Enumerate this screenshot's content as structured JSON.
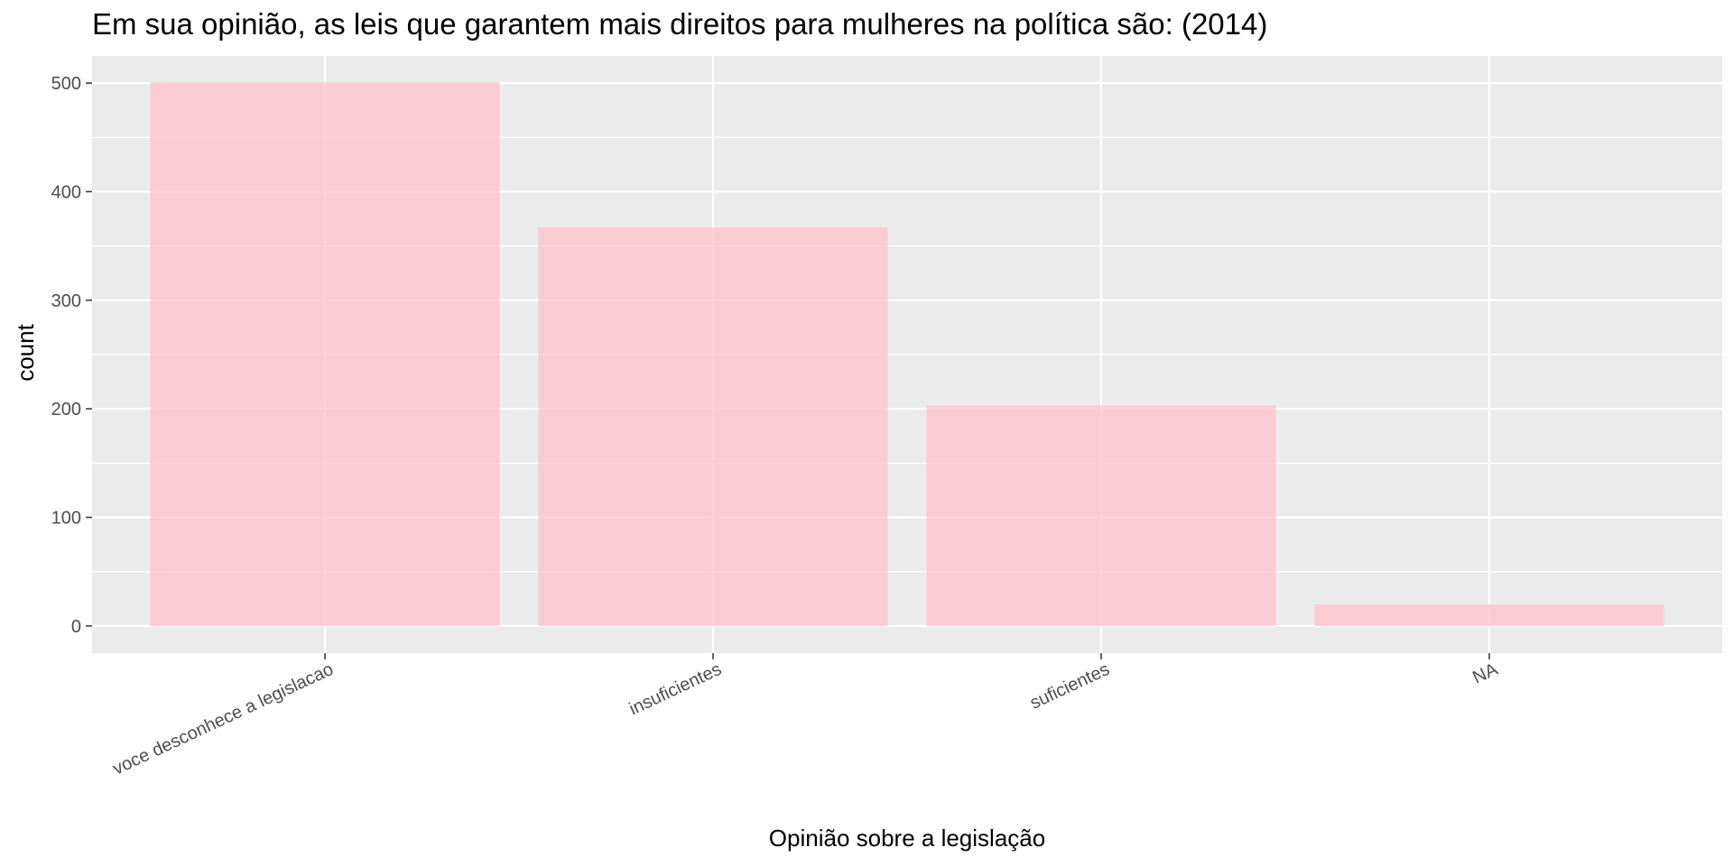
{
  "chart_data": {
    "type": "bar",
    "title": "Em sua opinião, as leis que garantem mais direitos para mulheres na política são: (2014)",
    "xlabel": "Opinião sobre a legislação",
    "ylabel": "count",
    "categories": [
      "voce desconhece a legislacao",
      "insuficientes",
      "suficientes",
      "NA"
    ],
    "values": [
      501,
      367,
      203,
      20
    ],
    "ylim": [
      -25,
      525
    ],
    "yticks": [
      0,
      100,
      200,
      300,
      400,
      500
    ],
    "grid": true,
    "legend": "none",
    "colors": {
      "bar": "#ffc0cb",
      "panel": "#ebebeb",
      "grid": "#ffffff"
    }
  }
}
